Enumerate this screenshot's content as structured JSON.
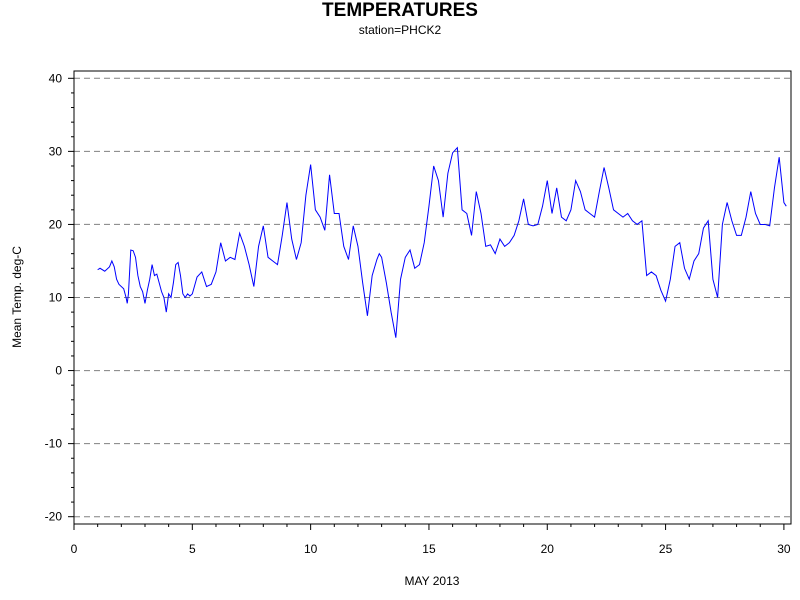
{
  "chart_data": {
    "type": "line",
    "title": "TEMPERATURES",
    "subtitle": "station=PHCK2",
    "xlabel": "MAY 2013",
    "ylabel": "Mean Temp. deg-C",
    "xlim": [
      0,
      30.3
    ],
    "ylim": [
      -21,
      41
    ],
    "xticks": [
      0,
      5,
      10,
      15,
      20,
      25,
      30
    ],
    "yticks": [
      -20,
      -10,
      0,
      10,
      20,
      30,
      40
    ],
    "grid": "horizontal dashed",
    "line_color": "#0000ff",
    "series": [
      {
        "x": [
          1.0,
          1.1,
          1.3,
          1.5,
          1.6,
          1.7,
          1.8,
          1.9,
          2.1,
          2.2,
          2.25,
          2.3,
          2.4,
          2.5,
          2.6,
          2.7,
          2.8,
          2.9,
          3.0,
          3.1,
          3.2,
          3.3,
          3.4,
          3.5,
          3.6,
          3.7,
          3.8,
          3.9,
          4.0,
          4.1,
          4.2,
          4.3,
          4.4,
          4.5,
          4.6,
          4.7,
          4.8,
          4.9,
          5.0,
          5.2,
          5.4,
          5.6,
          5.8,
          6.0,
          6.2,
          6.4,
          6.6,
          6.8,
          7.0,
          7.2,
          7.4,
          7.6,
          7.8,
          8.0,
          8.2,
          8.4,
          8.6,
          8.8,
          9.0,
          9.2,
          9.4,
          9.6,
          9.8,
          10.0,
          10.2,
          10.4,
          10.6,
          10.8,
          11.0,
          11.2,
          11.4,
          11.6,
          11.8,
          12.0,
          12.2,
          12.4,
          12.6,
          12.8,
          12.9,
          13.0,
          13.2,
          13.4,
          13.6,
          13.8,
          14.0,
          14.2,
          14.4,
          14.6,
          14.8,
          15.0,
          15.2,
          15.4,
          15.6,
          15.8,
          16.0,
          16.2,
          16.4,
          16.6,
          16.8,
          17.0,
          17.2,
          17.4,
          17.6,
          17.8,
          18.0,
          18.2,
          18.4,
          18.6,
          18.8,
          19.0,
          19.2,
          19.4,
          19.6,
          19.8,
          20.0,
          20.2,
          20.4,
          20.6,
          20.8,
          21.0,
          21.2,
          21.4,
          21.6,
          21.8,
          22.0,
          22.2,
          22.4,
          22.6,
          22.8,
          23.0,
          23.2,
          23.4,
          23.6,
          23.8,
          24.0,
          24.2,
          24.4,
          24.6,
          24.8,
          25.0,
          25.2,
          25.4,
          25.6,
          25.8,
          26.0,
          26.2,
          26.4,
          26.6,
          26.8,
          27.0,
          27.2,
          27.4,
          27.6,
          27.8,
          28.0,
          28.2,
          28.4,
          28.6,
          28.8,
          29.0,
          29.2,
          29.4,
          29.6,
          29.8,
          30.0,
          30.1
        ],
        "y": [
          13.8,
          14.0,
          13.6,
          14.2,
          15.0,
          14.2,
          12.5,
          11.8,
          11.2,
          10.0,
          9.2,
          10.5,
          16.5,
          16.4,
          15.5,
          13.0,
          11.5,
          10.8,
          9.2,
          11.0,
          12.5,
          14.5,
          13.0,
          13.2,
          12.0,
          10.8,
          10.0,
          8.0,
          10.5,
          10.0,
          12.0,
          14.5,
          14.8,
          13.0,
          10.5,
          10.0,
          10.5,
          10.2,
          10.5,
          12.8,
          13.5,
          11.5,
          11.8,
          13.5,
          17.5,
          15.0,
          15.5,
          15.2,
          18.8,
          17.0,
          14.5,
          11.5,
          17.0,
          19.8,
          15.5,
          15.0,
          14.5,
          18.5,
          23.0,
          18.0,
          15.2,
          17.5,
          24.0,
          28.2,
          22.0,
          21.0,
          19.2,
          26.8,
          21.5,
          21.5,
          17.0,
          15.2,
          19.8,
          17.0,
          12.0,
          7.5,
          13.0,
          15.2,
          16.0,
          15.5,
          12.0,
          8.0,
          4.5,
          12.5,
          15.5,
          16.5,
          14.0,
          14.5,
          17.5,
          22.5,
          28.0,
          26.0,
          21.0,
          27.0,
          29.8,
          30.5,
          22.0,
          21.5,
          18.5,
          24.5,
          21.5,
          17.0,
          17.2,
          16.0,
          18.0,
          17.0,
          17.5,
          18.5,
          20.5,
          23.5,
          20.0,
          19.8,
          20.0,
          22.5,
          26.0,
          21.5,
          25.0,
          21.0,
          20.5,
          22.0,
          26.0,
          24.5,
          22.0,
          21.5,
          21.0,
          24.5,
          27.8,
          25.0,
          22.0,
          21.5,
          21.0,
          21.5,
          20.5,
          20.0,
          20.5,
          13.0,
          13.5,
          13.0,
          11.0,
          9.5,
          12.5,
          17.0,
          17.5,
          14.0,
          12.5,
          15.0,
          16.0,
          19.5,
          20.5,
          12.5,
          10.0,
          20.0,
          23.0,
          20.5,
          18.5,
          18.5,
          21.0,
          24.5,
          21.5,
          20.0,
          20.0,
          19.8,
          25.0,
          29.2,
          23.0,
          22.5
        ]
      }
    ]
  }
}
